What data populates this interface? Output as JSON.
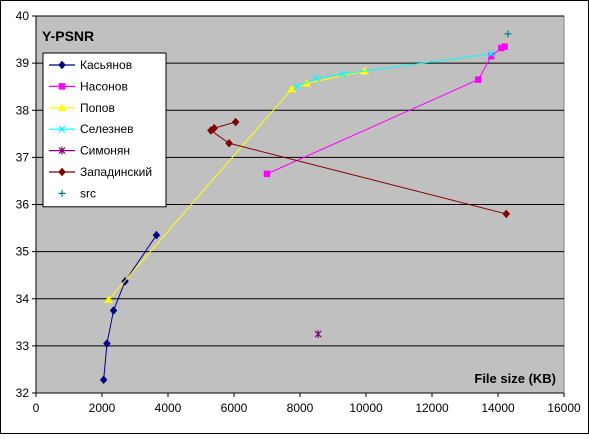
{
  "chart_data": {
    "type": "scatter",
    "title": "Y-PSNR",
    "xlabel": "File size (KB)",
    "ylabel": "",
    "xlim": [
      0,
      16000
    ],
    "ylim": [
      32,
      40
    ],
    "xticks": [
      0,
      2000,
      4000,
      6000,
      8000,
      10000,
      12000,
      14000,
      16000
    ],
    "yticks": [
      32,
      33,
      34,
      35,
      36,
      37,
      38,
      39,
      40
    ],
    "grid": "horizontal",
    "legend_position": "top-left",
    "plot_background": "#c0c0c0",
    "series": [
      {
        "name": "Касьянов",
        "color": "#000080",
        "marker": "diamond",
        "x": [
          2050,
          2150,
          2350,
          2700,
          3650
        ],
        "y": [
          32.28,
          33.05,
          33.75,
          34.37,
          35.35
        ]
      },
      {
        "name": "Насонов",
        "color": "#ff00ff",
        "marker": "square",
        "x": [
          7000,
          13400,
          13800,
          14100,
          14200
        ],
        "y": [
          36.65,
          38.65,
          39.15,
          39.32,
          39.35
        ]
      },
      {
        "name": "Попов",
        "color": "#ffff00",
        "marker": "triangle",
        "x": [
          2200,
          7750,
          8200,
          9950
        ],
        "y": [
          33.98,
          38.45,
          38.57,
          38.83
        ]
      },
      {
        "name": "Селезнев",
        "color": "#00ffff",
        "marker": "x",
        "x": [
          7900,
          8500,
          9300,
          13800
        ],
        "y": [
          38.5,
          38.68,
          38.77,
          39.2
        ]
      },
      {
        "name": "Симонян",
        "color": "#800080",
        "marker": "star",
        "x": [
          8550
        ],
        "y": [
          33.25
        ]
      },
      {
        "name": "Западинский",
        "color": "#800000",
        "marker": "diamond",
        "x": [
          6050,
          5400,
          5300,
          5850,
          14250
        ],
        "y": [
          37.75,
          37.62,
          37.57,
          37.3,
          35.8
        ]
      },
      {
        "name": "src",
        "color": "#008080",
        "marker": "plus",
        "line": false,
        "x": [
          14300
        ],
        "y": [
          39.62
        ]
      }
    ]
  }
}
